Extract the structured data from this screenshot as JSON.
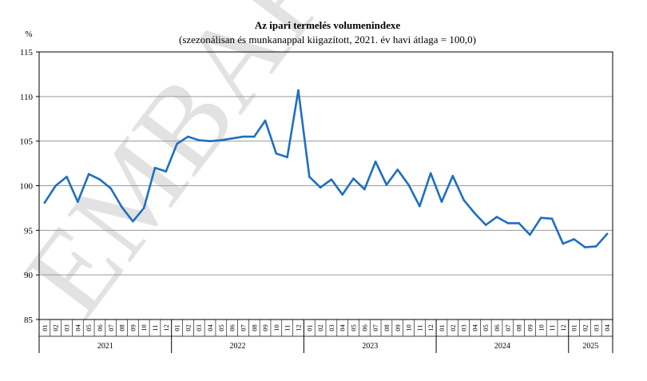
{
  "chart_data": {
    "type": "line",
    "title": "Az ipari termelés volumenindexe",
    "subtitle": "(szezonálisan és munkanappal kiigazított, 2021. év havi átlaga = 100,0)",
    "ylabel": "%",
    "ylim": [
      85,
      115
    ],
    "yticks": [
      85,
      90,
      95,
      100,
      105,
      110,
      115
    ],
    "grid": true,
    "series_color": "#1F6FC0",
    "years": [
      {
        "label": "2021",
        "months": [
          "01",
          "02",
          "03",
          "04",
          "05",
          "06",
          "07",
          "08",
          "09",
          "10",
          "11",
          "12"
        ]
      },
      {
        "label": "2022",
        "months": [
          "01",
          "02",
          "03",
          "04",
          "05",
          "06",
          "07",
          "08",
          "09",
          "10",
          "11",
          "12"
        ]
      },
      {
        "label": "2023",
        "months": [
          "01",
          "02",
          "03",
          "04",
          "05",
          "06",
          "07",
          "08",
          "09",
          "10",
          "11",
          "12"
        ]
      },
      {
        "label": "2024",
        "months": [
          "01",
          "02",
          "03",
          "04",
          "05",
          "06",
          "07",
          "08",
          "09",
          "10",
          "11",
          "12"
        ]
      },
      {
        "label": "2025",
        "months": [
          "01",
          "02",
          "03",
          "04"
        ]
      }
    ],
    "values": [
      98.1,
      100.0,
      101.0,
      98.2,
      101.3,
      100.7,
      99.7,
      97.6,
      96.0,
      97.5,
      102.0,
      101.6,
      104.7,
      105.5,
      105.1,
      105.0,
      105.1,
      105.3,
      105.5,
      105.5,
      107.3,
      103.6,
      103.2,
      110.7,
      101.0,
      99.8,
      100.7,
      99.0,
      100.8,
      99.6,
      102.7,
      100.1,
      101.8,
      100.1,
      97.7,
      101.4,
      98.2,
      101.1,
      98.4,
      96.9,
      95.6,
      96.5,
      95.8,
      95.8,
      94.5,
      96.4,
      96.3,
      93.5,
      94.0,
      93.1,
      93.2,
      94.6
    ]
  },
  "watermark": "EMBARGÓ"
}
